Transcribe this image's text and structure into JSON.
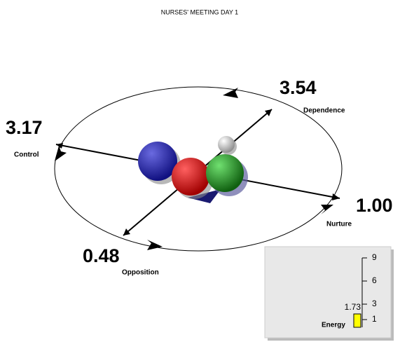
{
  "title": "NURSES' MEETING DAY 1",
  "dimensions": [
    {
      "name": "Dependence",
      "value": "3.54"
    },
    {
      "name": "Control",
      "value": "3.17"
    },
    {
      "name": "Nurture",
      "value": "1.00"
    },
    {
      "name": "Opposition",
      "value": "0.48"
    }
  ],
  "gauge": {
    "label": "Energy",
    "value": 1.73,
    "ylim": [
      0,
      9
    ],
    "yticks": [
      1,
      3,
      6,
      9
    ],
    "color": "#ffff00"
  }
}
